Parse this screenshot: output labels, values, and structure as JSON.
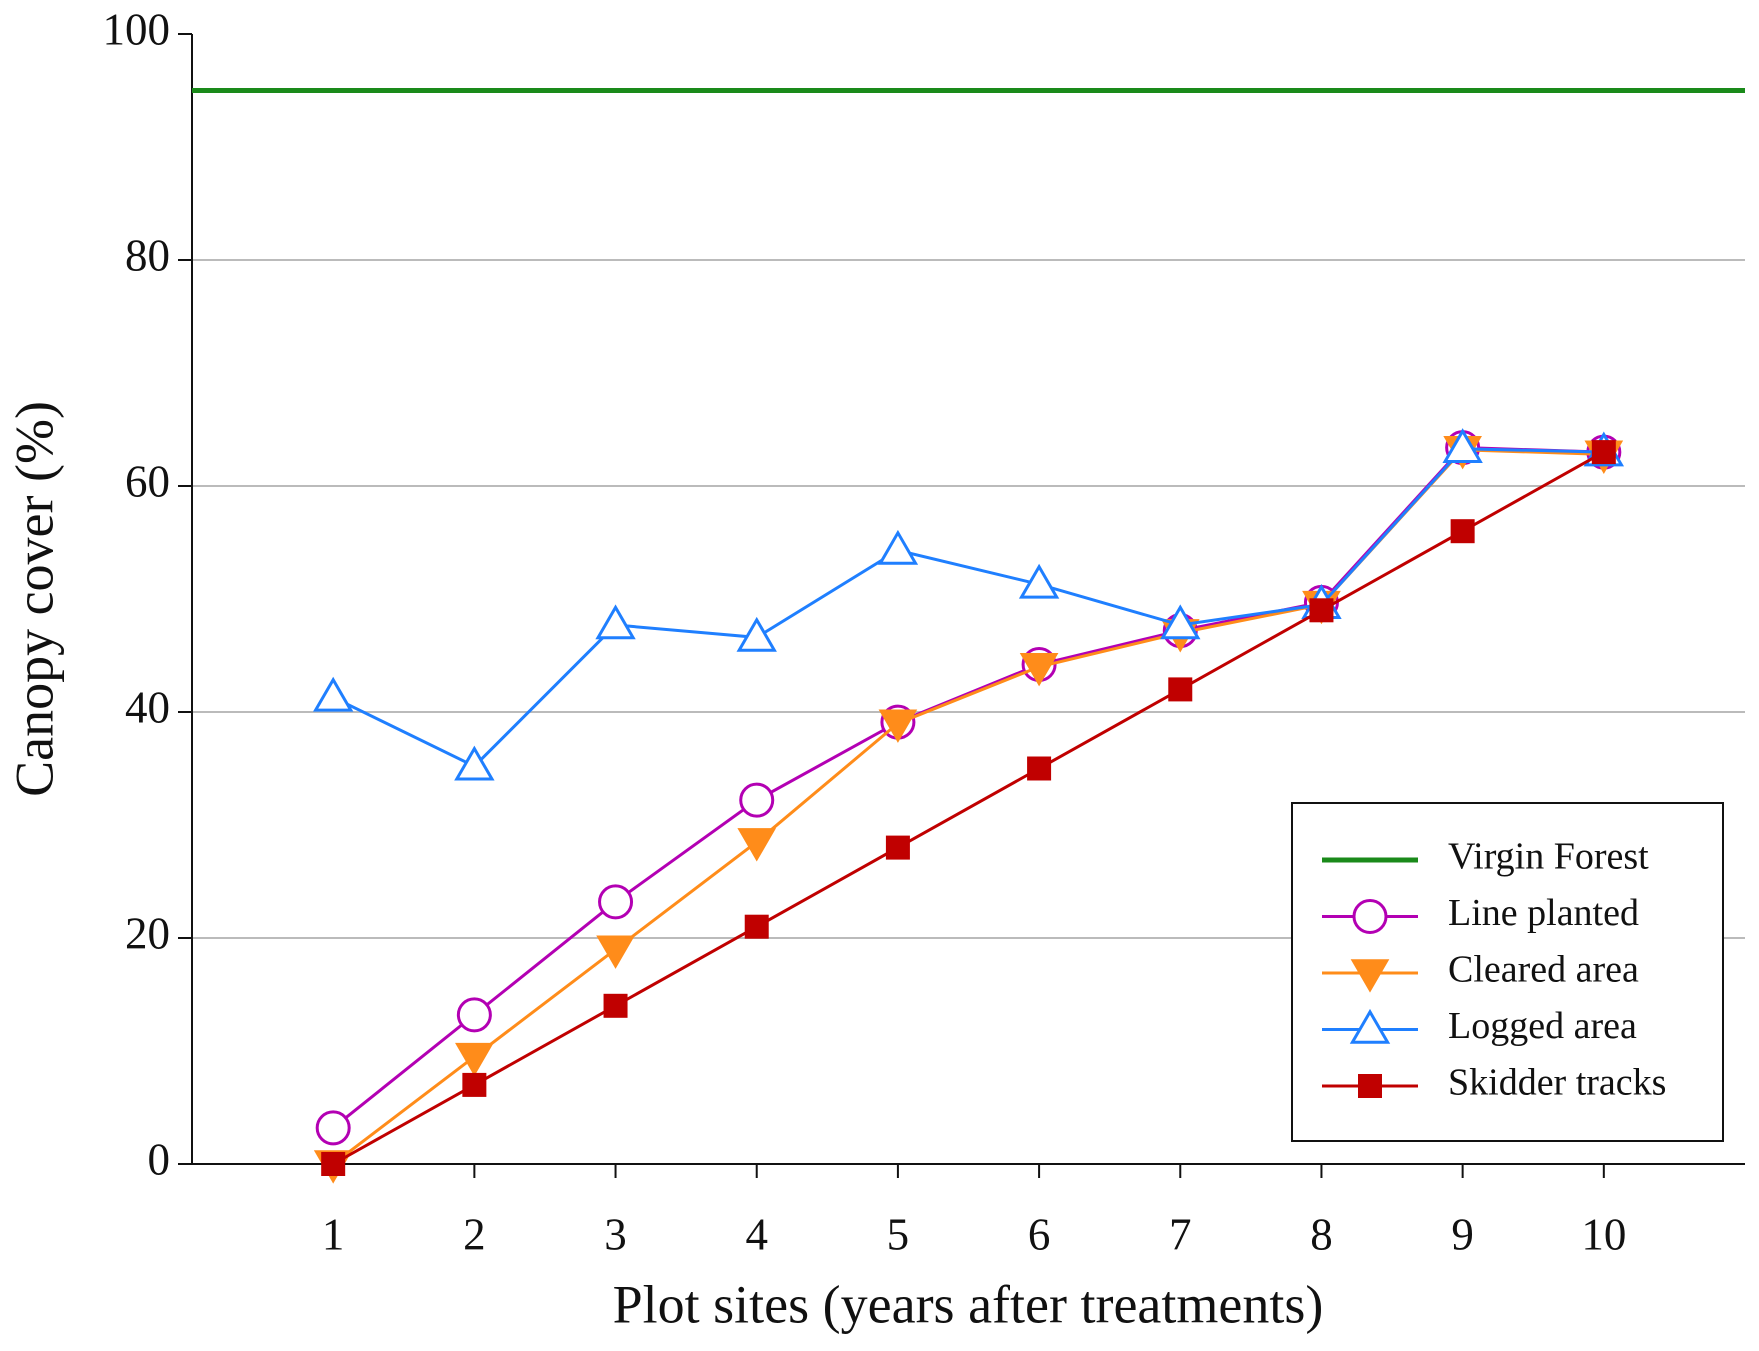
{
  "chart_data": {
    "type": "line",
    "x_label": "Plot sites (years after treatments)",
    "y_label": "Canopy cover (%)",
    "x": [
      1,
      2,
      3,
      4,
      5,
      6,
      7,
      8,
      9,
      10
    ],
    "xlim": [
      0,
      11
    ],
    "xticks": [
      1,
      2,
      3,
      4,
      5,
      6,
      7,
      8,
      9,
      10
    ],
    "ylim": [
      0,
      100
    ],
    "yticks": [
      0,
      20,
      40,
      60,
      80,
      100
    ],
    "grid": true,
    "legend": "lower right",
    "series": [
      {
        "name": "Virgin Forest",
        "color": "#1a8a1a",
        "marker": "none",
        "x": [
          0,
          11
        ],
        "values": [
          95,
          95
        ]
      },
      {
        "name": "Line planted",
        "color": "#b300b3",
        "marker": "circle",
        "values": [
          3.2,
          13.2,
          23.2,
          32.2,
          39.1,
          44.2,
          47.2,
          49.7,
          63.4,
          63.0
        ]
      },
      {
        "name": "Cleared area",
        "color": "#ff8c1a",
        "marker": "triangle-down",
        "values": [
          0,
          9.5,
          19,
          28.5,
          39,
          44,
          47,
          49.5,
          63.2,
          62.8
        ]
      },
      {
        "name": "Logged area",
        "color": "#1f7fff",
        "marker": "triangle-up",
        "values": [
          41.3,
          35.2,
          47.7,
          46.6,
          54.3,
          51.3,
          47.7,
          49.5,
          63.3,
          63.0
        ]
      },
      {
        "name": "Skidder tracks",
        "color": "#c00000",
        "marker": "square",
        "values": [
          0,
          7,
          14,
          21,
          28,
          35,
          42,
          49,
          56,
          63
        ]
      }
    ]
  }
}
